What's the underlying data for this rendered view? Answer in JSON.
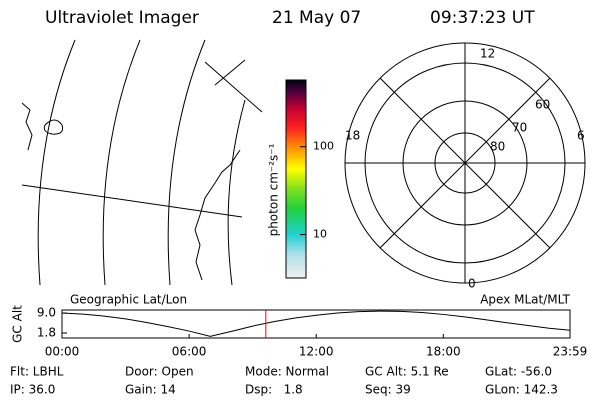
{
  "header": {
    "title": "Ultraviolet Imager",
    "date": "21 May 07",
    "time": "09:37:23 UT"
  },
  "panels": {
    "map_label": "Geographic Lat/Lon",
    "polar_label": "Apex MLat/MLT",
    "mlt_labels": [
      "12",
      "18",
      "6",
      "0"
    ],
    "mlat_labels": [
      "60",
      "70",
      "80"
    ]
  },
  "colorbar": {
    "label": "photon cm⁻²s⁻¹",
    "scale": "log",
    "lim": [
      3.2,
      575
    ],
    "ticks": [
      10,
      100
    ]
  },
  "chart_data": {
    "type": "line",
    "y_label": "GC Alt",
    "x": [
      0,
      1,
      2,
      3,
      4,
      5,
      6,
      7,
      8,
      9,
      10,
      11,
      12,
      13,
      14,
      15,
      16,
      17,
      18,
      19,
      20,
      21,
      22,
      23,
      23.98
    ],
    "values": [
      9.0,
      8.6,
      7.9,
      6.9,
      5.6,
      4.1,
      2.5,
      0.6,
      2.4,
      4.3,
      5.9,
      7.2,
      8.2,
      9.0,
      9.5,
      9.7,
      9.6,
      9.2,
      8.5,
      7.6,
      6.6,
      5.5,
      4.5,
      3.5,
      2.8
    ],
    "color": "#000000",
    "current_time": 9.62,
    "current_color": "#ff0000",
    "xlim": [
      0,
      23.98
    ],
    "xticks": [
      {
        "value": 0,
        "label": "00:00"
      },
      {
        "value": 6,
        "label": "06:00"
      },
      {
        "value": 12,
        "label": "12:00"
      },
      {
        "value": 18,
        "label": "18:00"
      },
      {
        "value": 23.98,
        "label": "23:59"
      }
    ],
    "ylim": [
      0.0,
      10.1
    ],
    "yticks": [
      {
        "value": 9,
        "label": "9.0"
      },
      1.8
    ]
  },
  "footer": {
    "rows": [
      [
        "Flt: LBHL",
        "Door: Open",
        "Mode: Normal",
        "GC Alt: 5.1 Re",
        "GLat: -56.0"
      ],
      [
        "IP: 36.0",
        "Gain: 14",
        "Dsp:   1.8",
        "Seq: 39",
        "GLon: 142.3"
      ]
    ]
  }
}
